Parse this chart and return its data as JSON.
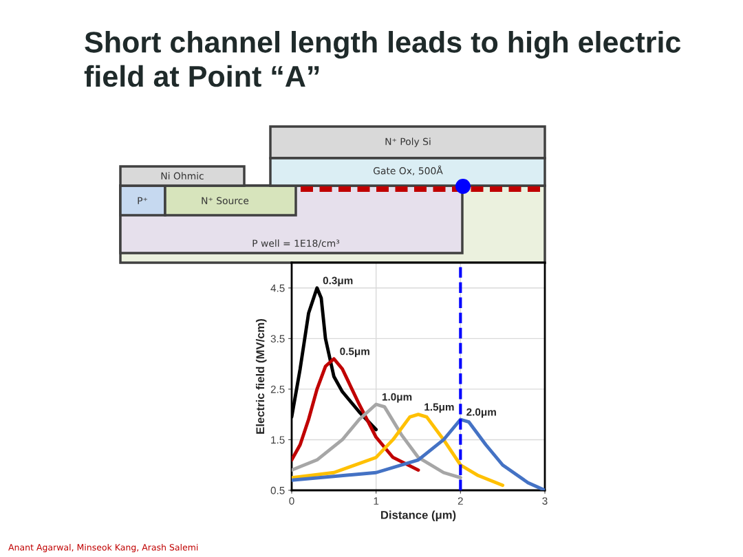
{
  "chart_data": {
    "type": "line",
    "title": "Short channel length leads to high electric field at Point “A”",
    "xlabel": "Distance (μm)",
    "ylabel": "Electric field (MV/cm)",
    "xlim": [
      0,
      3
    ],
    "xticks": [
      0,
      1,
      2,
      3
    ],
    "ylim": [
      0.5,
      5
    ],
    "yticks": [
      0.5,
      1.5,
      2.5,
      3.5,
      4.5
    ],
    "grid": true,
    "marker": "none",
    "line_style": "solid",
    "series": [
      {
        "name": "0.3μm",
        "color": "#000000",
        "x": [
          0,
          0.1,
          0.2,
          0.3,
          0.35,
          0.4,
          0.5,
          0.6,
          0.8,
          1.0
        ],
        "values": [
          1.95,
          2.9,
          4.0,
          4.5,
          4.3,
          3.5,
          2.75,
          2.45,
          2.05,
          1.7
        ]
      },
      {
        "name": "0.5μm",
        "color": "#c00000",
        "x": [
          0,
          0.1,
          0.2,
          0.3,
          0.4,
          0.5,
          0.6,
          0.8,
          1.0,
          1.2,
          1.5
        ],
        "values": [
          1.1,
          1.4,
          1.9,
          2.5,
          2.95,
          3.1,
          2.9,
          2.2,
          1.55,
          1.15,
          0.9
        ]
      },
      {
        "name": "1.0μm",
        "color": "#a6a6a6",
        "x": [
          0,
          0.3,
          0.6,
          0.8,
          1.0,
          1.1,
          1.3,
          1.5,
          1.8,
          2.0
        ],
        "values": [
          0.9,
          1.1,
          1.5,
          1.9,
          2.2,
          2.15,
          1.6,
          1.15,
          0.85,
          0.75
        ]
      },
      {
        "name": "1.5μm",
        "color": "#ffc000",
        "x": [
          0,
          0.5,
          1.0,
          1.2,
          1.4,
          1.5,
          1.6,
          1.8,
          2.0,
          2.2,
          2.5
        ],
        "values": [
          0.75,
          0.85,
          1.15,
          1.5,
          1.95,
          2.0,
          1.95,
          1.5,
          1.0,
          0.8,
          0.6
        ]
      },
      {
        "name": "2.0μm",
        "color": "#4472c4",
        "x": [
          0,
          1.0,
          1.5,
          1.8,
          2.0,
          2.1,
          2.3,
          2.5,
          2.8,
          3.0
        ],
        "values": [
          0.7,
          0.85,
          1.1,
          1.5,
          1.9,
          1.85,
          1.4,
          1.0,
          0.65,
          0.5
        ]
      }
    ],
    "ref_lines": [
      {
        "axis": "x",
        "value": 2,
        "color": "#0000ff",
        "line_style": "dashed"
      }
    ],
    "annotations": [
      "N⁺ Poly Si",
      "Gate Ox, 500Å",
      "Ni Ohmic",
      "P⁺",
      "N⁺ Source",
      "P well = 1E18/cm³",
      "Anant Agarwal, Minseok Kang, Arash Salemi"
    ]
  }
}
